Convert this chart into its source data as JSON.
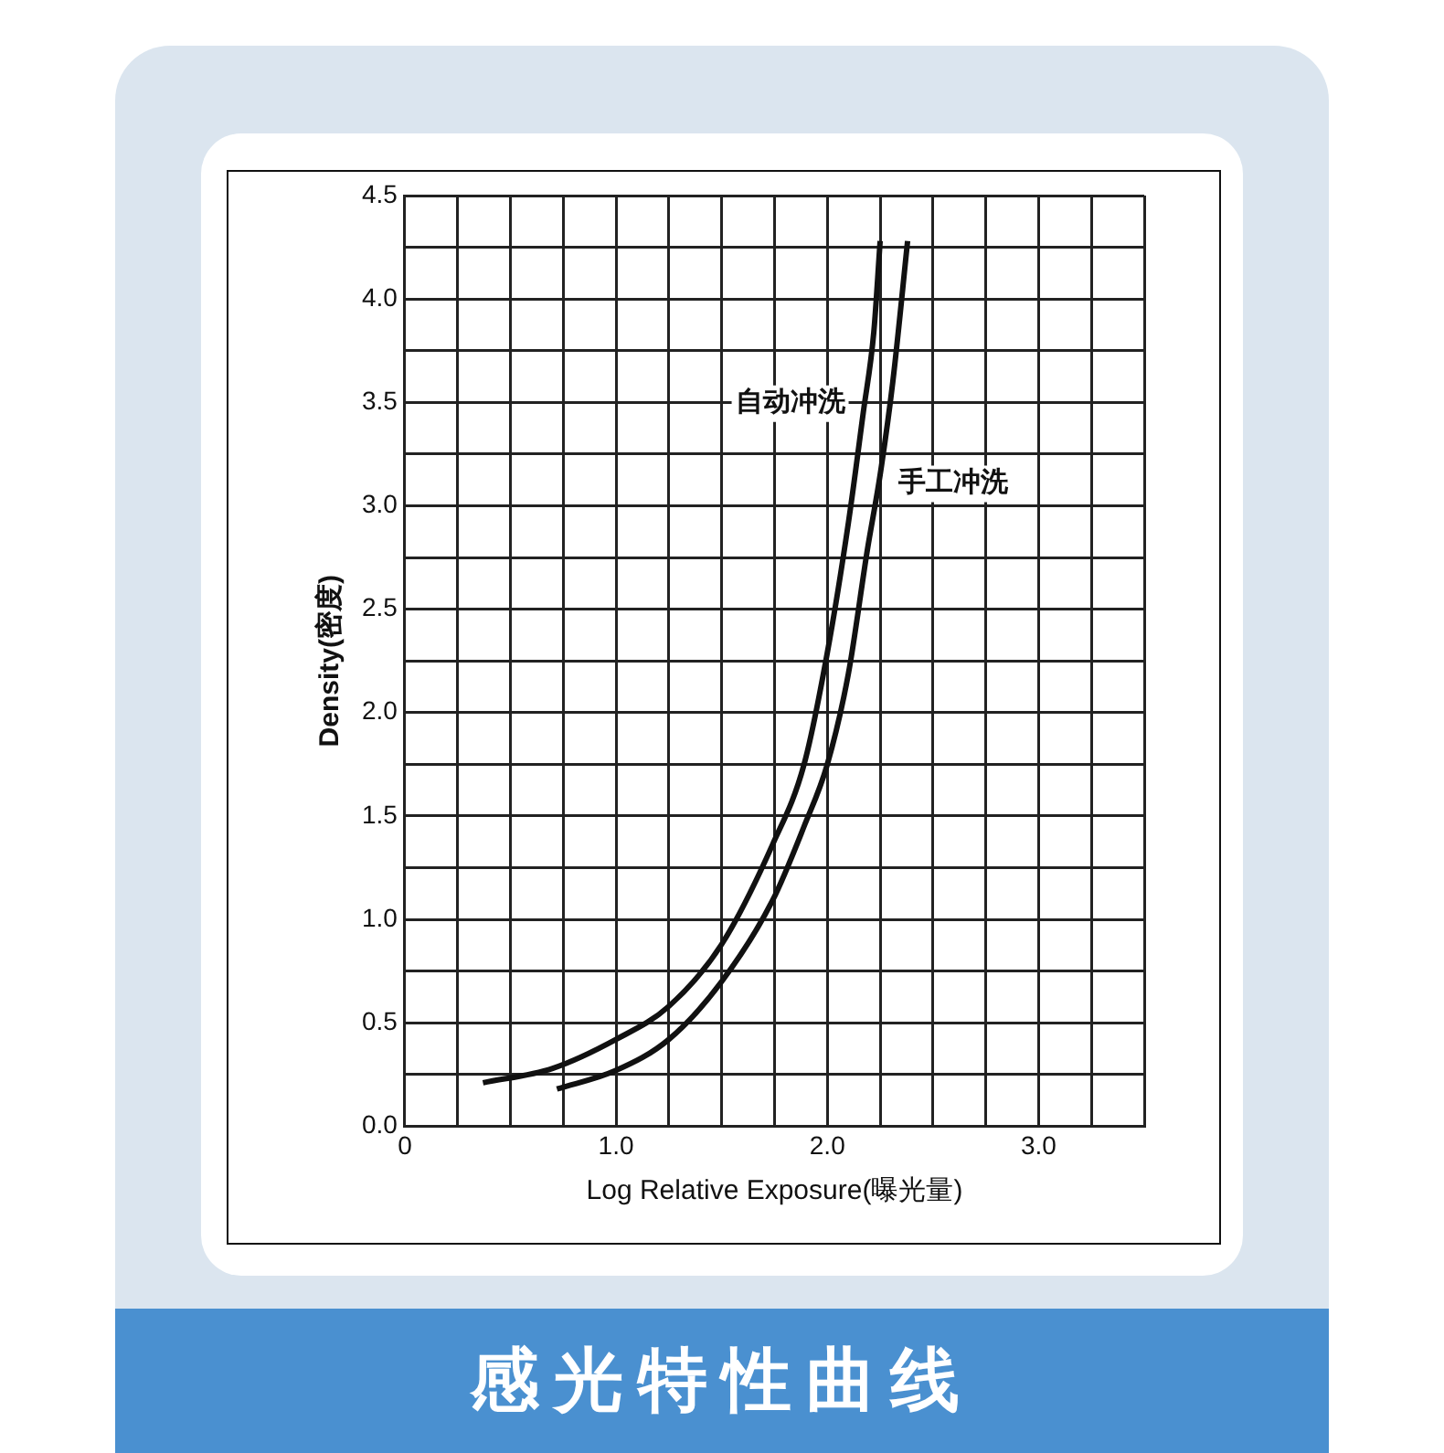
{
  "chart_data": {
    "type": "line",
    "title": "感光特性曲线",
    "xlabel": "Log Relative Exposure(曝光量)",
    "ylabel": "Density(密度)",
    "xlim": [
      0,
      3.5
    ],
    "xticks": [
      {
        "value": 0,
        "label": "0"
      },
      {
        "value": 0.25,
        "label": null
      },
      {
        "value": 0.5,
        "label": null
      },
      {
        "value": 0.75,
        "label": null
      },
      {
        "value": 1,
        "label": "1.0"
      },
      {
        "value": 1.25,
        "label": null
      },
      {
        "value": 1.5,
        "label": null
      },
      {
        "value": 1.75,
        "label": null
      },
      {
        "value": 2,
        "label": "2.0"
      },
      {
        "value": 2.25,
        "label": null
      },
      {
        "value": 2.5,
        "label": null
      },
      {
        "value": 2.75,
        "label": null
      },
      {
        "value": 3,
        "label": "3.0"
      },
      {
        "value": 3.25,
        "label": null
      },
      {
        "value": 3.5,
        "label": null
      }
    ],
    "ylim": [
      0,
      4.5
    ],
    "yticks": [
      {
        "value": 0,
        "label": "0.0"
      },
      {
        "value": 0.25,
        "label": null
      },
      {
        "value": 0.5,
        "label": "0.5"
      },
      {
        "value": 0.75,
        "label": null
      },
      {
        "value": 1,
        "label": "1.0"
      },
      {
        "value": 1.25,
        "label": null
      },
      {
        "value": 1.5,
        "label": "1.5"
      },
      {
        "value": 1.75,
        "label": null
      },
      {
        "value": 2,
        "label": "2.0"
      },
      {
        "value": 2.25,
        "label": null
      },
      {
        "value": 2.5,
        "label": "2.5"
      },
      {
        "value": 2.75,
        "label": null
      },
      {
        "value": 3,
        "label": "3.0"
      },
      {
        "value": 3.25,
        "label": null
      },
      {
        "value": 3.5,
        "label": "3.5"
      },
      {
        "value": 3.75,
        "label": null
      },
      {
        "value": 4,
        "label": "4.0"
      },
      {
        "value": 4.25,
        "label": null
      },
      {
        "value": 4.5,
        "label": "4.5"
      }
    ],
    "grid": true,
    "legend": false,
    "marker": "none",
    "line_style": "solid",
    "series": [
      {
        "name": "自动冲洗",
        "color": "#111111",
        "x": [
          0.37,
          0.7,
          1.0,
          1.25,
          1.5,
          1.74,
          1.89,
          2.0,
          2.1,
          2.17,
          2.22,
          2.25
        ],
        "values": [
          0.21,
          0.28,
          0.42,
          0.58,
          0.88,
          1.36,
          1.75,
          2.29,
          2.92,
          3.45,
          3.84,
          4.28
        ]
      },
      {
        "name": "手工冲洗",
        "color": "#111111",
        "x": [
          0.72,
          1.0,
          1.25,
          1.5,
          1.74,
          1.89,
          2.0,
          2.1,
          2.19,
          2.25,
          2.31,
          2.38
        ],
        "values": [
          0.18,
          0.27,
          0.42,
          0.7,
          1.09,
          1.45,
          1.75,
          2.19,
          2.79,
          3.15,
          3.6,
          4.28
        ]
      }
    ]
  }
}
